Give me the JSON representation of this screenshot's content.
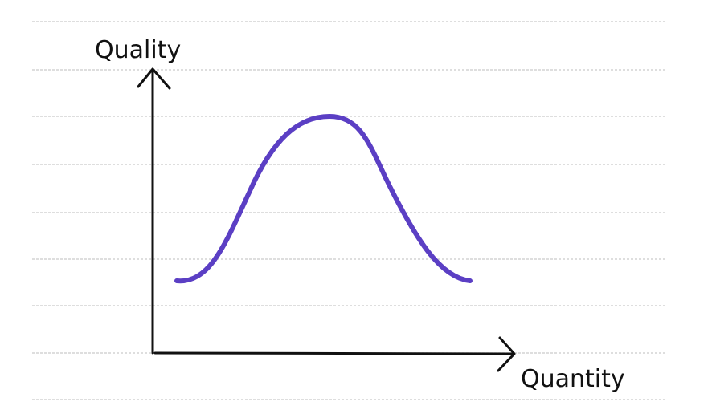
{
  "axis_labels": {
    "y": "Quality",
    "x": "Quantity"
  }
}
